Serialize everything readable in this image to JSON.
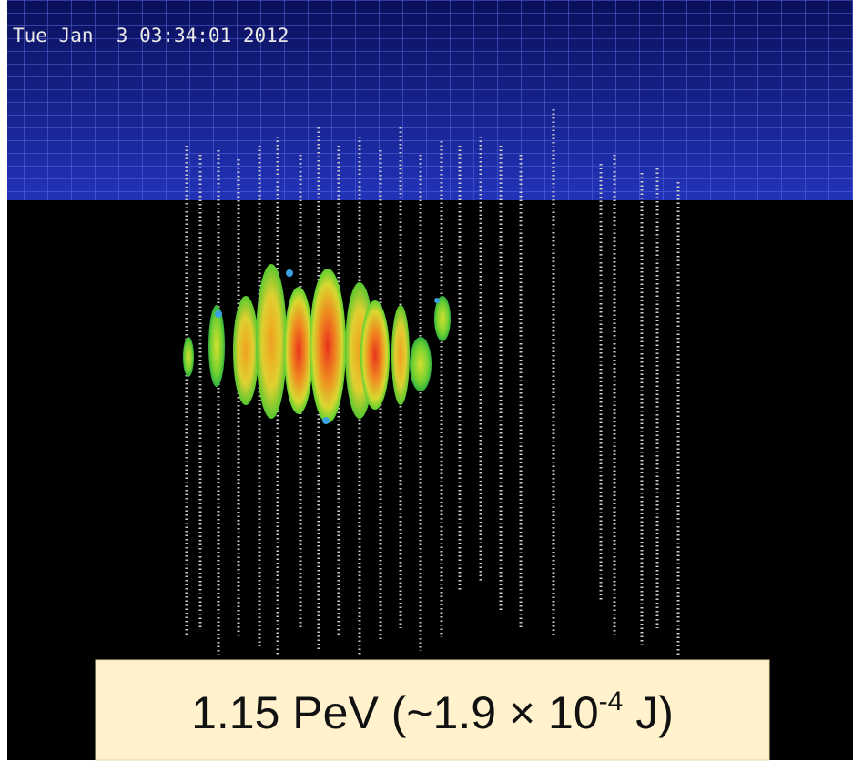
{
  "timestamp": "Tue Jan  3 03:34:01 2012",
  "label": {
    "main": "1.15 PeV (~1.9 × 10",
    "exponent": "-4",
    "end": " J)"
  }
}
